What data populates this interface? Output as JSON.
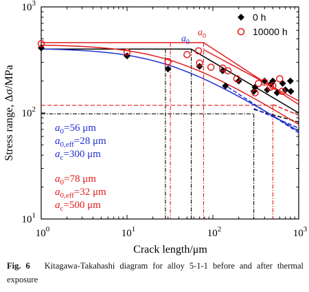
{
  "chart_data": {
    "type": "scatter",
    "x_scale": "log",
    "y_scale": "log",
    "xlim": [
      1,
      1000
    ],
    "ylim": [
      10,
      1000
    ],
    "xlabel": "Crack length/μm",
    "ylabel": "Stress range, Δσ/MPa",
    "x_ticks": [
      {
        "value": 1,
        "label": "10^0"
      },
      {
        "value": 10,
        "label": "10^1"
      },
      {
        "value": 100,
        "label": "10^2"
      },
      {
        "value": 1000,
        "label": "10^3"
      }
    ],
    "y_ticks": [
      {
        "value": 10,
        "label": "10^1"
      },
      {
        "value": 100,
        "label": "10^2"
      },
      {
        "value": 1000,
        "label": "10^3"
      }
    ],
    "legend_position": "top-right",
    "series": [
      {
        "name": "0 h",
        "marker": "filled-diamond",
        "color": "#000000",
        "points": [
          [
            1,
            410
          ],
          [
            10,
            345
          ],
          [
            30,
            260
          ],
          [
            70,
            275
          ],
          [
            130,
            250
          ],
          [
            140,
            180
          ],
          [
            200,
            200
          ],
          [
            300,
            160
          ],
          [
            310,
            175
          ],
          [
            400,
            200
          ],
          [
            430,
            165
          ],
          [
            480,
            190
          ],
          [
            500,
            200
          ],
          [
            560,
            155
          ],
          [
            650,
            190
          ],
          [
            700,
            165
          ],
          [
            800,
            200
          ],
          [
            810,
            160
          ]
        ]
      },
      {
        "name": "10000 h",
        "marker": "open-circle",
        "color": "#e41a1c",
        "points": [
          [
            1,
            450
          ],
          [
            10,
            375
          ],
          [
            30,
            305
          ],
          [
            50,
            355
          ],
          [
            68,
            385
          ],
          [
            70,
            295
          ],
          [
            95,
            270
          ],
          [
            130,
            265
          ],
          [
            150,
            250
          ],
          [
            190,
            210
          ],
          [
            310,
            155
          ],
          [
            340,
            190
          ],
          [
            400,
            195
          ],
          [
            470,
            175
          ],
          [
            500,
            180
          ],
          [
            600,
            210
          ],
          [
            640,
            160
          ]
        ]
      }
    ],
    "annotation_top": {
      "symbol": "a",
      "subscript": "0"
    },
    "params_0h": [
      {
        "base": "a",
        "sub": "0",
        "rest": "=56 μm"
      },
      {
        "base": "a",
        "sub": "0,eff",
        "rest": "=28 μm"
      },
      {
        "base": "a",
        "sub": "c",
        "rest": "=300 μm"
      }
    ],
    "params_10000h": [
      {
        "base": "a",
        "sub": "0",
        "rest": "=78 μm"
      },
      {
        "base": "a",
        "sub": "0,eff",
        "rest": "=32 μm"
      },
      {
        "base": "a",
        "sub": "c",
        "rest": "=500 μm"
      }
    ],
    "curves": {
      "black_solid_plateau": 400,
      "blue_solid_plateau": 400,
      "red_solid_plateau": 460,
      "fatigue_limit_0h": 98,
      "fatigue_limit_10000h": 118
    },
    "colors": {
      "c0h": "#1f2fd0",
      "c10000h": "#e41a1c",
      "black": "#000000"
    }
  },
  "caption": {
    "fig_label": "Fig. 6",
    "text": "Kitagawa-Takahashi diagram for alloy 5-1-1 before and after thermal exposure"
  }
}
